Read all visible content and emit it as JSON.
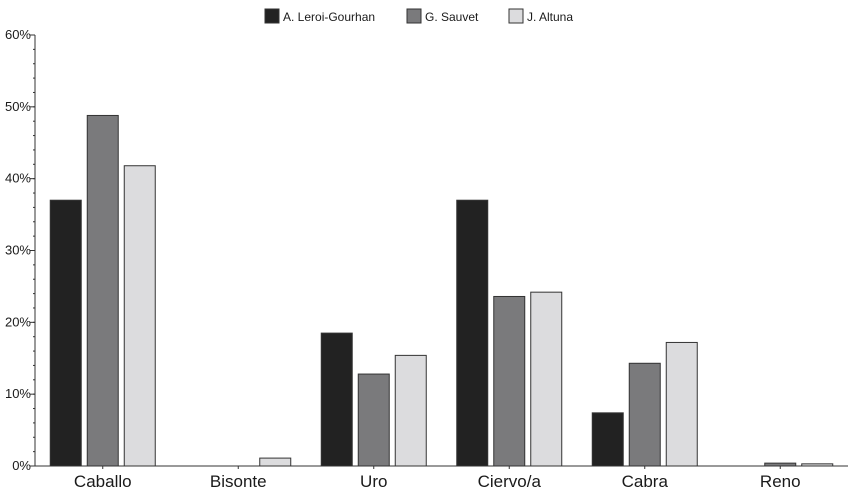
{
  "chart_data": {
    "type": "bar",
    "categories": [
      "Caballo",
      "Bisonte",
      "Uro",
      "Ciervo/a",
      "Cabra",
      "Reno"
    ],
    "series": [
      {
        "name": "A. Leroi-Gourhan",
        "color": "#222222",
        "values": [
          37.0,
          0,
          18.5,
          37.0,
          7.4,
          0
        ]
      },
      {
        "name": "G. Sauvet",
        "color": "#7a7a7c",
        "values": [
          48.8,
          0,
          12.8,
          23.6,
          14.3,
          0.4
        ]
      },
      {
        "name": "J. Altuna",
        "color": "#dcdcde",
        "values": [
          41.8,
          1.1,
          15.4,
          24.2,
          17.2,
          0.3
        ]
      }
    ],
    "ylim": [
      0,
      60
    ],
    "yticks": [
      "0%",
      "10%",
      "20%",
      "30%",
      "40%",
      "50%",
      "60%"
    ],
    "ytick_values": [
      0,
      10,
      20,
      30,
      40,
      50,
      60
    ],
    "legend_position": "top-center",
    "grid": false
  }
}
